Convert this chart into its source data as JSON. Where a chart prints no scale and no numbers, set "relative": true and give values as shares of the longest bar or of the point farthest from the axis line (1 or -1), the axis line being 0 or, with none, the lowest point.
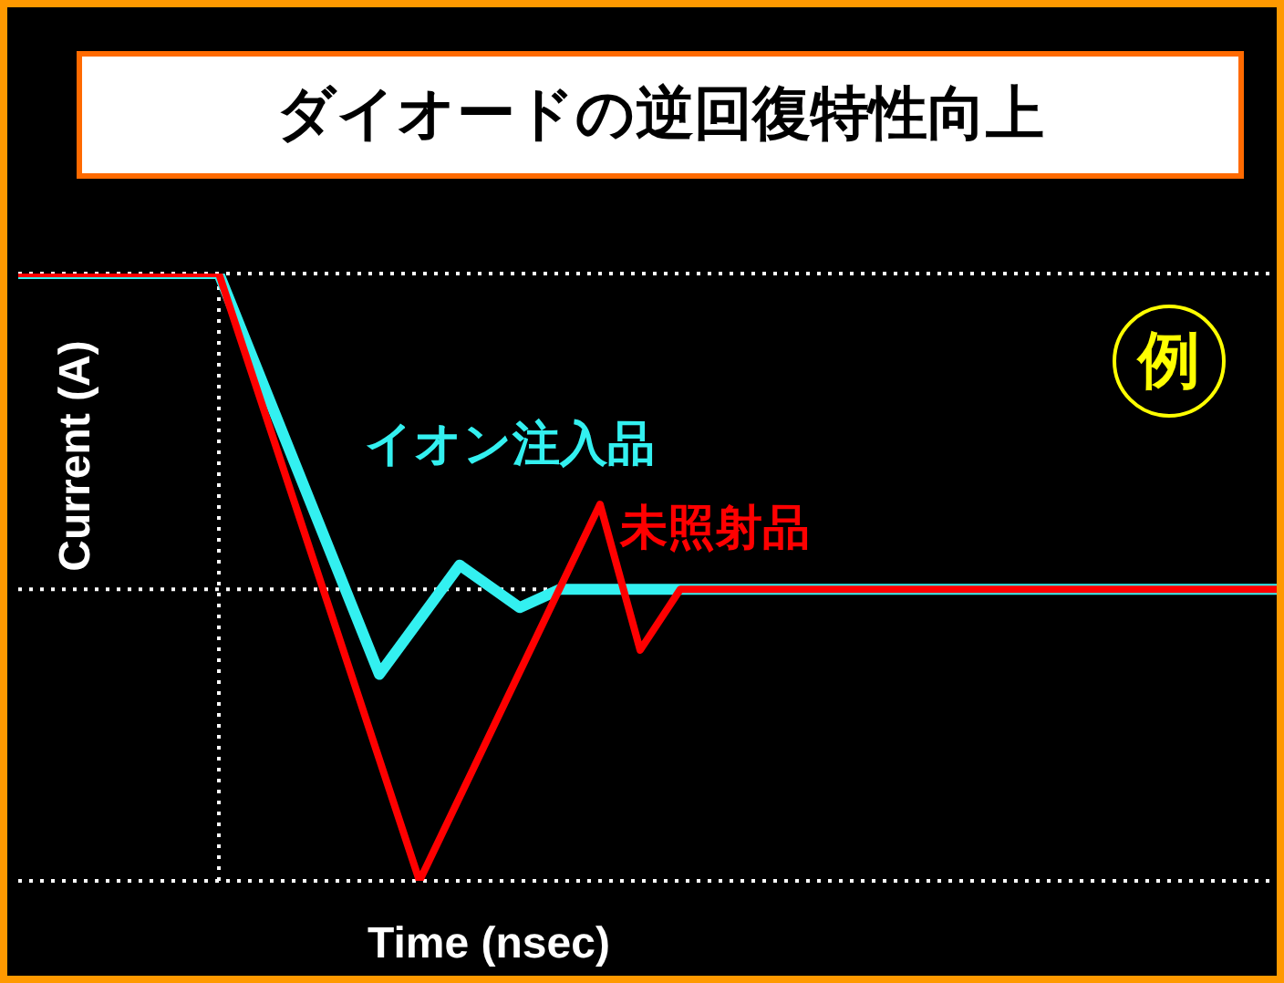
{
  "chart_data": {
    "type": "line",
    "title": "ダイオードの逆回復特性向上",
    "xlabel": "Time (nsec)",
    "ylabel": "Current (A)",
    "relative": true,
    "legend": false,
    "marker": "none",
    "line_style": "solid",
    "annotations": [
      "例"
    ],
    "categories": [
      null,
      null,
      null,
      null,
      null,
      null,
      null,
      null,
      null,
      null,
      null,
      null,
      null,
      null,
      null,
      null,
      null,
      null,
      null,
      null,
      null,
      null,
      null,
      null,
      null,
      null,
      null,
      null,
      null,
      null,
      null,
      null,
      null,
      null,
      null,
      null,
      null,
      null,
      null,
      null,
      null,
      null,
      null,
      null,
      null,
      null,
      null,
      null,
      null,
      null,
      null,
      null,
      null,
      null,
      null,
      null,
      null,
      null,
      null,
      null,
      null,
      null,
      null,
      null
    ],
    "series": [
      {
        "name": "イオン注入品",
        "color": "#33f0f0",
        "values": [
          1,
          null,
          null,
          null,
          null,
          null,
          null,
          null,
          null,
          null,
          1,
          null,
          null,
          null,
          null,
          null,
          null,
          null,
          0.34,
          null,
          null,
          null,
          0.52,
          null,
          null,
          0.45,
          null,
          0.48,
          null,
          null,
          null,
          null,
          null,
          null,
          null,
          null,
          null,
          null,
          null,
          null,
          null,
          null,
          null,
          null,
          null,
          null,
          null,
          null,
          null,
          null,
          null,
          null,
          null,
          null,
          null,
          null,
          null,
          null,
          null,
          null,
          null,
          null,
          null,
          0.48
        ]
      },
      {
        "name": "未照射品",
        "color": "#ff0000",
        "values": [
          1,
          null,
          null,
          null,
          null,
          null,
          null,
          null,
          null,
          null,
          1,
          null,
          null,
          null,
          null,
          null,
          null,
          null,
          null,
          null,
          0,
          null,
          null,
          null,
          null,
          null,
          null,
          null,
          null,
          0.62,
          null,
          0.38,
          null,
          0.48,
          null,
          null,
          null,
          null,
          null,
          null,
          null,
          null,
          null,
          null,
          null,
          null,
          null,
          null,
          null,
          null,
          null,
          null,
          null,
          null,
          null,
          null,
          null,
          null,
          null,
          null,
          null,
          null,
          null,
          0.48
        ]
      }
    ]
  }
}
